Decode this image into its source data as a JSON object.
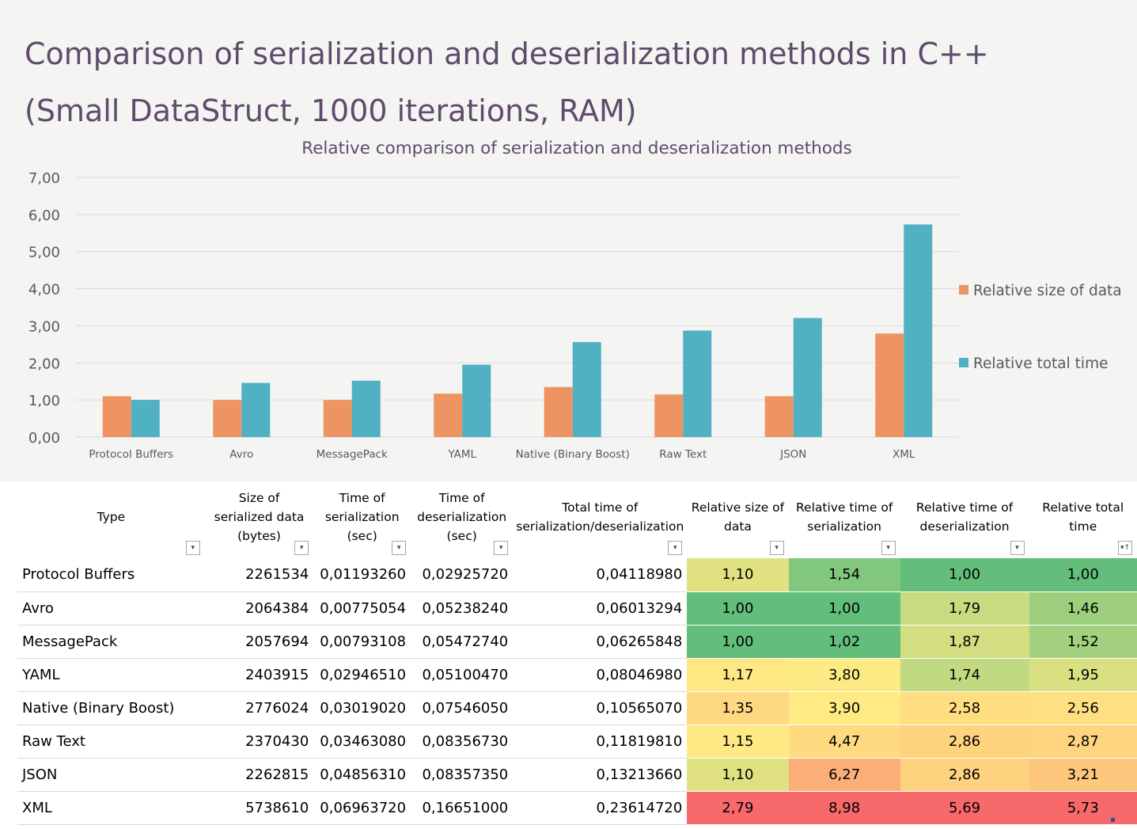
{
  "page_title": {
    "line1": "Comparison of serialization and deserialization methods in C++",
    "line2": "(Small DataStruct, 1000 iterations, RAM)"
  },
  "colors": {
    "series_size": "#ee9462",
    "series_time": "#4fb1c2",
    "title_text": "#5f4b6b",
    "chart_background": "#f4f4f2",
    "gridline": "#d9d9d9",
    "heat_low": "#63be7b",
    "heat_mid": "#ffeb84",
    "heat_high": "#f8696b"
  },
  "chart_data": {
    "type": "bar",
    "title": "Relative comparison of serialization and deserialization methods",
    "categories": [
      "Protocol Buffers",
      "Avro",
      "MessagePack",
      "YAML",
      "Native (Binary Boost)",
      "Raw Text",
      "JSON",
      "XML"
    ],
    "series": [
      {
        "name": "Relative size of data",
        "values": [
          1.1,
          1.0,
          1.0,
          1.17,
          1.35,
          1.15,
          1.1,
          2.79
        ]
      },
      {
        "name": "Relative total time",
        "values": [
          1.0,
          1.46,
          1.52,
          1.95,
          2.56,
          2.87,
          3.21,
          5.73
        ]
      }
    ],
    "ylim": [
      0,
      7
    ],
    "y_ticks": [
      "0,00",
      "1,00",
      "2,00",
      "3,00",
      "4,00",
      "5,00",
      "6,00",
      "7,00"
    ],
    "xlabel": "",
    "ylabel": "",
    "grid": true,
    "legend_position": "right"
  },
  "table": {
    "headers": [
      "Type",
      "Size of serialized data (bytes)",
      "Time of serialization (sec)",
      "Time of deserialization (sec)",
      "Total time of serialization/deserialization",
      "Relative size of data",
      "Relative time of serialization",
      "Relative time of deserialization",
      "Relative total time"
    ],
    "filter_icons": [
      "filter-dropdown-icon",
      "filter-dropdown-icon",
      "filter-dropdown-icon",
      "filter-dropdown-icon",
      "filter-dropdown-icon",
      "filter-dropdown-icon",
      "filter-dropdown-icon",
      "filter-dropdown-icon",
      "sort-filter-icon"
    ],
    "rows": [
      [
        "Protocol Buffers",
        "2261534",
        "0,01193260",
        "0,02925720",
        "0,04118980",
        "1,10",
        "1,54",
        "1,00",
        "1,00"
      ],
      [
        "Avro",
        "2064384",
        "0,00775054",
        "0,05238240",
        "0,06013294",
        "1,00",
        "1,00",
        "1,79",
        "1,46"
      ],
      [
        "MessagePack",
        "2057694",
        "0,00793108",
        "0,05472740",
        "0,06265848",
        "1,00",
        "1,02",
        "1,87",
        "1,52"
      ],
      [
        "YAML",
        "2403915",
        "0,02946510",
        "0,05100470",
        "0,08046980",
        "1,17",
        "3,80",
        "1,74",
        "1,95"
      ],
      [
        "Native (Binary Boost)",
        "2776024",
        "0,03019020",
        "0,07546050",
        "0,10565070",
        "1,35",
        "3,90",
        "2,58",
        "2,56"
      ],
      [
        "Raw Text",
        "2370430",
        "0,03463080",
        "0,08356730",
        "0,11819810",
        "1,15",
        "4,47",
        "2,86",
        "2,87"
      ],
      [
        "JSON",
        "2262815",
        "0,04856310",
        "0,08357350",
        "0,13213660",
        "1,10",
        "6,27",
        "2,86",
        "3,21"
      ],
      [
        "XML",
        "5738610",
        "0,06963720",
        "0,16651000",
        "0,23614720",
        "2,79",
        "8,98",
        "5,69",
        "5,73"
      ]
    ]
  }
}
